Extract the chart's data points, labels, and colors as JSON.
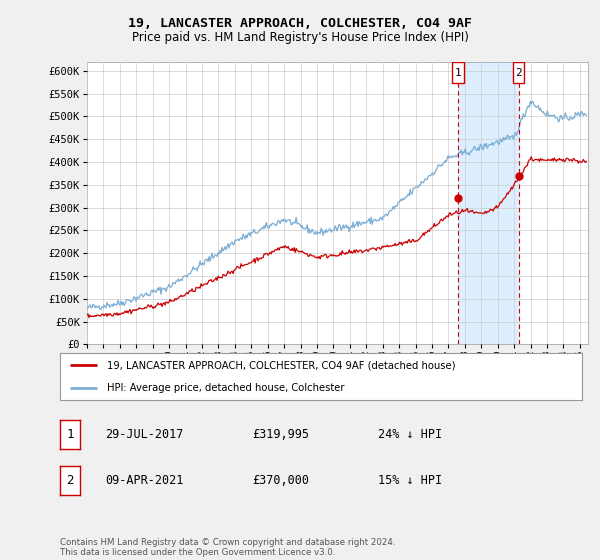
{
  "title": "19, LANCASTER APPROACH, COLCHESTER, CO4 9AF",
  "subtitle": "Price paid vs. HM Land Registry's House Price Index (HPI)",
  "ylim": [
    0,
    620000
  ],
  "yticks": [
    0,
    50000,
    100000,
    150000,
    200000,
    250000,
    300000,
    350000,
    400000,
    450000,
    500000,
    550000,
    600000
  ],
  "hpi_color": "#7aadd4",
  "price_color": "#cc0000",
  "marker1_date": "29-JUL-2017",
  "marker1_price": 319995,
  "marker1_hpi_diff": "24% ↓ HPI",
  "marker1_x": 2017.58,
  "marker2_date": "09-APR-2021",
  "marker2_price": 370000,
  "marker2_hpi_diff": "15% ↓ HPI",
  "marker2_x": 2021.27,
  "legend_line1": "19, LANCASTER APPROACH, COLCHESTER, CO4 9AF (detached house)",
  "legend_line2": "HPI: Average price, detached house, Colchester",
  "footer": "Contains HM Land Registry data © Crown copyright and database right 2024.\nThis data is licensed under the Open Government Licence v3.0.",
  "background_color": "#f0f0f0",
  "plot_bg_color": "#ffffff",
  "grid_color": "#cccccc",
  "shade_color": "#ddeeff",
  "xmin": 1995,
  "xmax": 2025.5
}
